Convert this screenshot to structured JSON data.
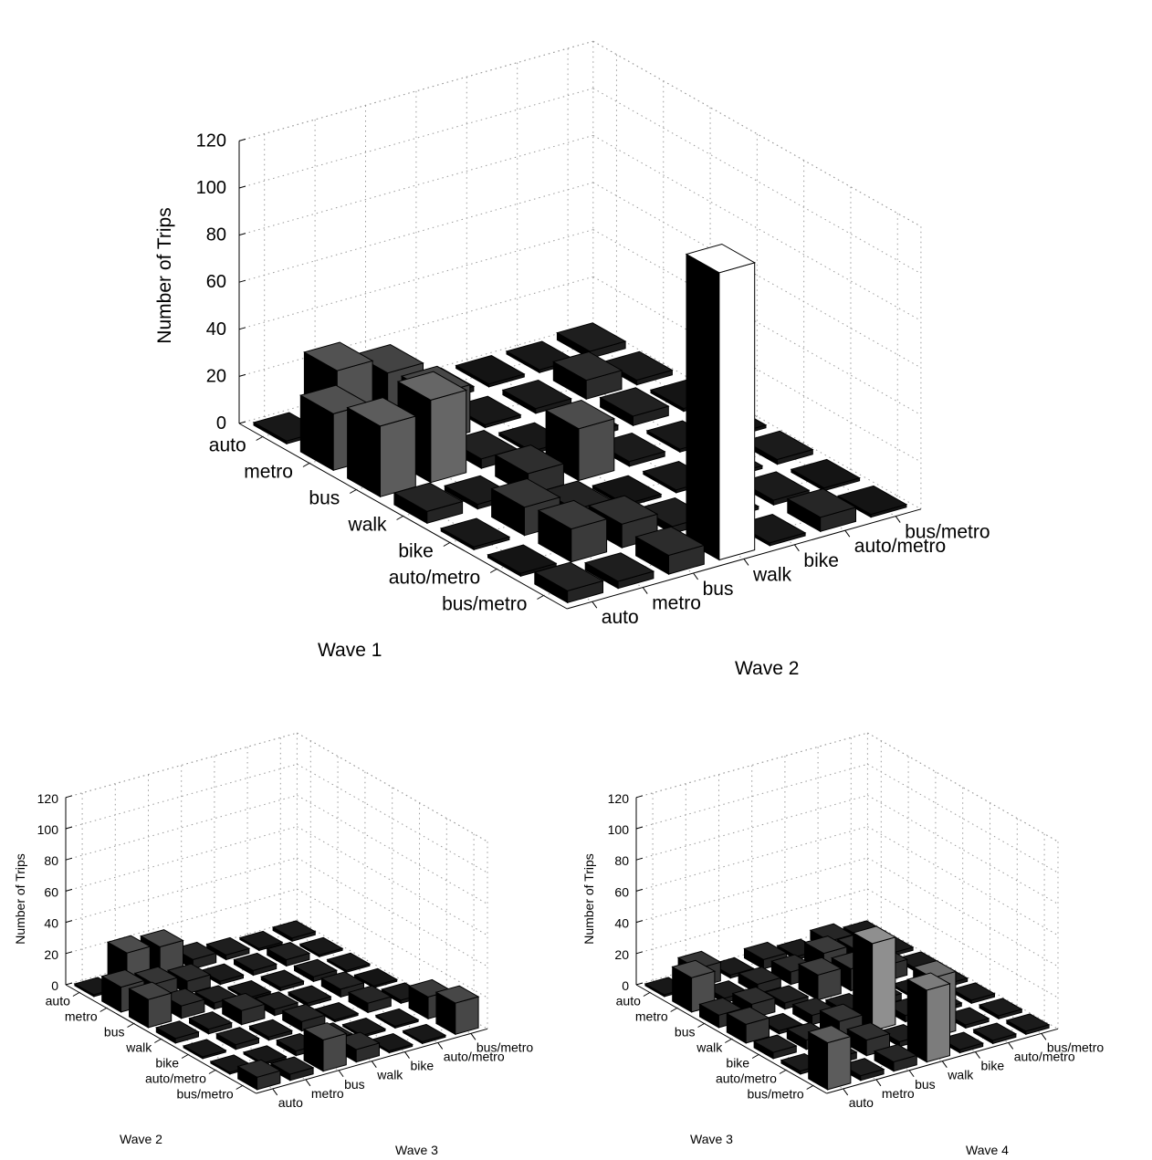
{
  "colors": {
    "background": "#ffffff",
    "grid": "#9a9a9a",
    "axis": "#000000",
    "bar_edge": "#000000"
  },
  "chart_data": [
    {
      "type": "bar3d",
      "xlabel": "Wave 1",
      "ylabel": "Wave 2",
      "zlabel": "Number of Trips",
      "zlim": [
        0,
        120
      ],
      "zticks": [
        0,
        20,
        40,
        60,
        80,
        100,
        120
      ],
      "categories_x": [
        "auto",
        "metro",
        "bus",
        "walk",
        "bike",
        "auto/metro",
        "bus/metro"
      ],
      "categories_y": [
        "auto",
        "metro",
        "bus",
        "walk",
        "bike",
        "auto/metro",
        "bus/metro"
      ],
      "grid": true,
      "values": [
        [
          1,
          25,
          18,
          2,
          0,
          1,
          3
        ],
        [
          24,
          2,
          20,
          1,
          2,
          8,
          2
        ],
        [
          30,
          35,
          4,
          1,
          2,
          4,
          0
        ],
        [
          5,
          2,
          9,
          22,
          2,
          1,
          0
        ],
        [
          1,
          12,
          5,
          0,
          1,
          1,
          2
        ],
        [
          0,
          14,
          10,
          3,
          1,
          2,
          0
        ],
        [
          5,
          3,
          8,
          122,
          1,
          6,
          0
        ]
      ]
    },
    {
      "type": "bar3d",
      "xlabel": "Wave 2",
      "ylabel": "Wave 3",
      "zlabel": "Number of Trips",
      "zlim": [
        0,
        120
      ],
      "zticks": [
        0,
        20,
        40,
        60,
        80,
        100,
        120
      ],
      "categories_x": [
        "auto",
        "metro",
        "bus",
        "walk",
        "bike",
        "auto/metro",
        "bus/metro"
      ],
      "categories_y": [
        "auto",
        "metro",
        "bus",
        "walk",
        "bike",
        "auto/metro",
        "bus/metro"
      ],
      "grid": true,
      "values": [
        [
          1,
          22,
          20,
          6,
          3,
          1,
          2
        ],
        [
          16,
          12,
          8,
          2,
          3,
          4,
          1
        ],
        [
          18,
          8,
          4,
          1,
          2,
          3,
          1
        ],
        [
          3,
          3,
          9,
          4,
          2,
          5,
          0
        ],
        [
          1,
          3,
          2,
          6,
          1,
          6,
          2
        ],
        [
          1,
          1,
          3,
          4,
          1,
          1,
          14
        ],
        [
          8,
          4,
          20,
          8,
          1,
          1,
          20
        ]
      ]
    },
    {
      "type": "bar3d",
      "xlabel": "Wave 3",
      "ylabel": "Wave 4",
      "zlabel": "Number of Trips",
      "zlim": [
        0,
        120
      ],
      "zticks": [
        0,
        20,
        40,
        60,
        80,
        100,
        120
      ],
      "categories_x": [
        "auto",
        "metro",
        "bus",
        "walk",
        "bike",
        "auto/metro",
        "bus/metro"
      ],
      "categories_y": [
        "auto",
        "metro",
        "bus",
        "walk",
        "bike",
        "auto/metro",
        "bus/metro"
      ],
      "grid": true,
      "values": [
        [
          1,
          12,
          2,
          6,
          2,
          6,
          2
        ],
        [
          22,
          3,
          6,
          8,
          14,
          10,
          2
        ],
        [
          8,
          9,
          4,
          16,
          14,
          10,
          2
        ],
        [
          12,
          2,
          6,
          3,
          4,
          1,
          2
        ],
        [
          4,
          6,
          12,
          56,
          4,
          2,
          2
        ],
        [
          2,
          4,
          10,
          3,
          38,
          2,
          2
        ],
        [
          30,
          3,
          6,
          46,
          2,
          2,
          2
        ]
      ]
    }
  ]
}
